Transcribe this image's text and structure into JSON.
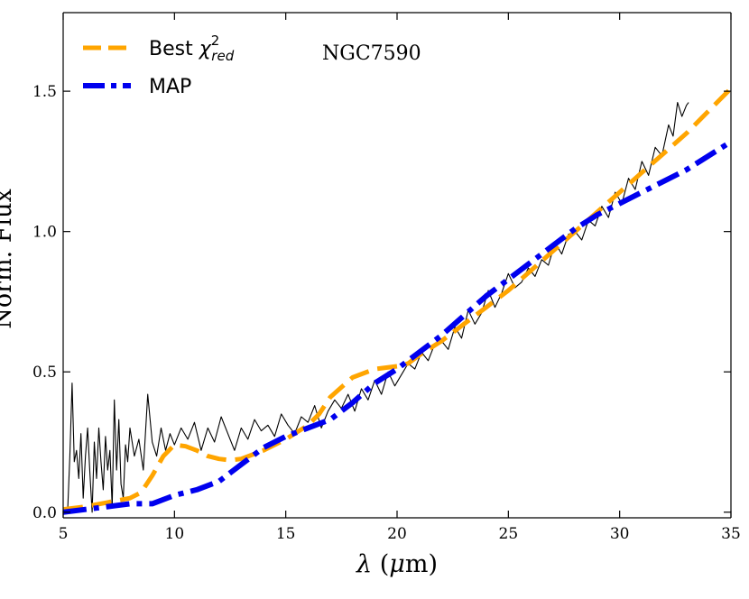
{
  "chart_data": {
    "type": "line",
    "xlabel": "λ (μm)",
    "ylabel": "Norm. Flux",
    "xlim": [
      5,
      35
    ],
    "ylim": [
      -0.02,
      1.78
    ],
    "x_ticks": [
      5,
      10,
      15,
      20,
      25,
      30,
      35
    ],
    "x_tick_labels": [
      "5",
      "10",
      "15",
      "20",
      "25",
      "30",
      "35"
    ],
    "y_ticks": [
      0.0,
      0.5,
      1.0,
      1.5
    ],
    "y_tick_labels": [
      "0.0",
      "0.5",
      "1.0",
      "1.5"
    ],
    "annotation": "NGC7590",
    "grid": false,
    "legend_position": "top-left",
    "series": [
      {
        "name": "Best χ²red",
        "legend_text_main": "Best ",
        "legend_symbol": "χ",
        "legend_sup": "2",
        "legend_sub": "red",
        "color": "#FFA500",
        "style": "dashed",
        "x": [
          5,
          6,
          7,
          8,
          8.5,
          9,
          9.5,
          10,
          10.5,
          11,
          11.5,
          12,
          12.5,
          13,
          14,
          15,
          16,
          16.5,
          17,
          18,
          19,
          20,
          20.5,
          21,
          22,
          23,
          24,
          25,
          26,
          27,
          28,
          29,
          30,
          31,
          32,
          33,
          34,
          35
        ],
        "y": [
          0.01,
          0.02,
          0.035,
          0.05,
          0.07,
          0.13,
          0.2,
          0.24,
          0.235,
          0.22,
          0.2,
          0.19,
          0.185,
          0.19,
          0.22,
          0.26,
          0.31,
          0.35,
          0.41,
          0.48,
          0.51,
          0.52,
          0.53,
          0.56,
          0.61,
          0.67,
          0.73,
          0.79,
          0.86,
          0.93,
          1.0,
          1.07,
          1.14,
          1.21,
          1.28,
          1.35,
          1.43,
          1.51
        ]
      },
      {
        "name": "MAP",
        "legend_text_main": "MAP",
        "color": "#0000EE",
        "style": "dashdot",
        "x": [
          5,
          6,
          7,
          8,
          9,
          10,
          11,
          12,
          13,
          14,
          15,
          16,
          17,
          18,
          19,
          20,
          21,
          22,
          23,
          24,
          25,
          26,
          27,
          28,
          29,
          30,
          31,
          32,
          33,
          34,
          35
        ],
        "y": [
          0.0,
          0.01,
          0.02,
          0.03,
          0.03,
          0.06,
          0.08,
          0.11,
          0.17,
          0.23,
          0.27,
          0.3,
          0.33,
          0.39,
          0.46,
          0.51,
          0.57,
          0.63,
          0.7,
          0.77,
          0.83,
          0.89,
          0.95,
          1.01,
          1.06,
          1.1,
          1.14,
          1.18,
          1.22,
          1.27,
          1.32
        ]
      },
      {
        "name": "",
        "color": "#000000",
        "style": "solid-thin",
        "x": [
          5.2,
          5.3,
          5.4,
          5.5,
          5.6,
          5.7,
          5.8,
          5.9,
          6.0,
          6.1,
          6.2,
          6.3,
          6.4,
          6.5,
          6.6,
          6.7,
          6.8,
          6.9,
          7.0,
          7.1,
          7.2,
          7.3,
          7.4,
          7.5,
          7.6,
          7.7,
          7.8,
          7.9,
          8.0,
          8.2,
          8.4,
          8.6,
          8.8,
          9.0,
          9.2,
          9.4,
          9.6,
          9.8,
          10.0,
          10.3,
          10.6,
          10.9,
          11.2,
          11.5,
          11.8,
          12.1,
          12.4,
          12.7,
          13.0,
          13.3,
          13.6,
          13.9,
          14.2,
          14.5,
          14.8,
          15.1,
          15.4,
          15.7,
          16.0,
          16.3,
          16.6,
          16.9,
          17.2,
          17.5,
          17.8,
          18.1,
          18.4,
          18.7,
          19.0,
          19.3,
          19.6,
          19.9,
          20.2,
          20.5,
          20.8,
          21.1,
          21.4,
          21.7,
          22.0,
          22.3,
          22.6,
          22.9,
          23.2,
          23.5,
          23.8,
          24.1,
          24.4,
          24.7,
          25.0,
          25.3,
          25.6,
          25.9,
          26.2,
          26.5,
          26.8,
          27.1,
          27.4,
          27.7,
          28.0,
          28.3,
          28.6,
          28.9,
          29.2,
          29.5,
          29.8,
          30.1,
          30.4,
          30.7,
          31.0,
          31.3,
          31.6,
          31.9,
          32.2,
          32.4,
          32.6,
          32.8,
          33.0,
          33.1
        ],
        "y": [
          0.0,
          0.2,
          0.46,
          0.18,
          0.22,
          0.12,
          0.28,
          0.05,
          0.2,
          0.3,
          0.14,
          0.0,
          0.25,
          0.12,
          0.3,
          0.18,
          0.08,
          0.27,
          0.15,
          0.22,
          0.02,
          0.4,
          0.15,
          0.33,
          0.1,
          0.05,
          0.24,
          0.18,
          0.3,
          0.2,
          0.26,
          0.15,
          0.42,
          0.25,
          0.2,
          0.3,
          0.22,
          0.28,
          0.24,
          0.3,
          0.26,
          0.32,
          0.22,
          0.3,
          0.25,
          0.34,
          0.28,
          0.22,
          0.3,
          0.26,
          0.33,
          0.29,
          0.31,
          0.27,
          0.35,
          0.31,
          0.28,
          0.34,
          0.32,
          0.38,
          0.3,
          0.36,
          0.4,
          0.37,
          0.42,
          0.36,
          0.44,
          0.4,
          0.47,
          0.42,
          0.5,
          0.45,
          0.49,
          0.53,
          0.51,
          0.57,
          0.54,
          0.6,
          0.61,
          0.58,
          0.66,
          0.62,
          0.72,
          0.67,
          0.71,
          0.79,
          0.73,
          0.78,
          0.85,
          0.8,
          0.82,
          0.87,
          0.84,
          0.9,
          0.88,
          0.96,
          0.92,
          0.99,
          1.0,
          0.97,
          1.04,
          1.02,
          1.09,
          1.05,
          1.14,
          1.1,
          1.19,
          1.15,
          1.25,
          1.2,
          1.3,
          1.27,
          1.38,
          1.34,
          1.46,
          1.41,
          1.45,
          1.46
        ]
      }
    ]
  }
}
